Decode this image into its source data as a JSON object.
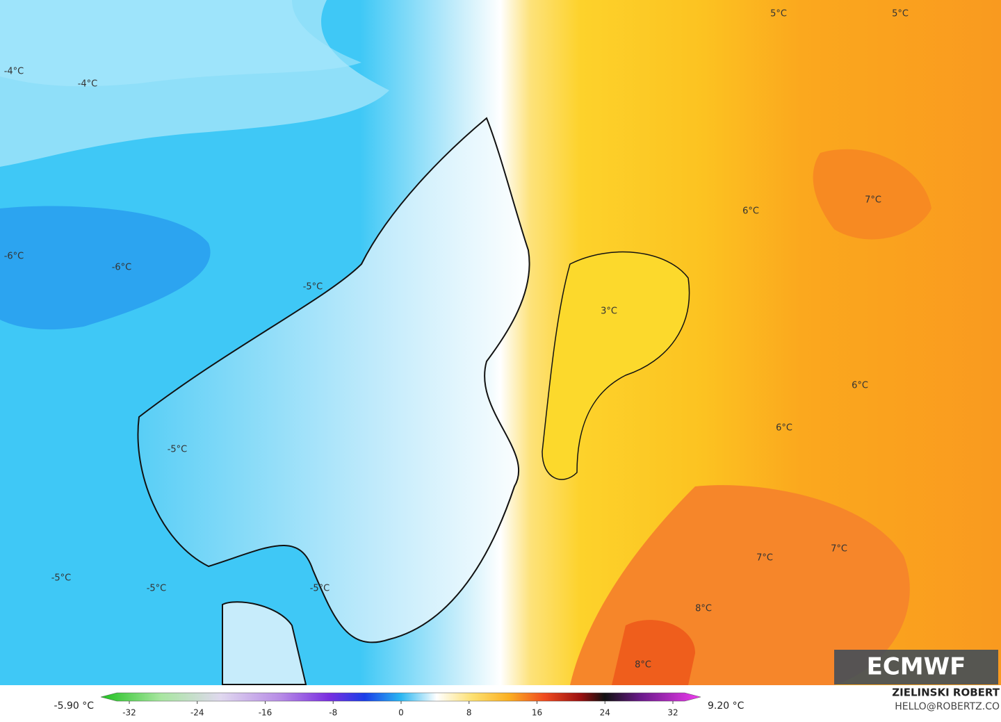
{
  "map": {
    "labels": [
      "-4°C",
      "-4°C",
      "5°C",
      "5°C",
      "6°C",
      "7°C",
      "-6°C",
      "-6°C",
      "-5°C",
      "3°C",
      "6°C",
      "6°C",
      "-5°C",
      "7°C",
      "7°C",
      "-5°C",
      "-5°C",
      "-5°C",
      "8°C",
      "8°C"
    ]
  },
  "logo": "ECMWF",
  "colorbar": {
    "min_label": "-5.90 °C",
    "max_label": "9.20 °C",
    "ticks": [
      -32,
      -24,
      -16,
      -8,
      0,
      8,
      16,
      24,
      32
    ]
  },
  "credit": {
    "name": "ZIELINSKI ROBERT",
    "email": "HELLO@ROBERTZ.CO"
  }
}
